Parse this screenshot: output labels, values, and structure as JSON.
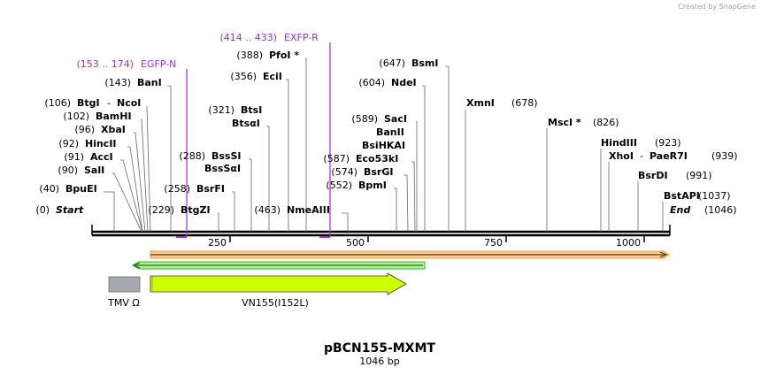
{
  "watermark": "Created by SnapGene",
  "plasmid": {
    "name": "pBCN155-MXMT",
    "length": "1046 bp"
  },
  "axis": {
    "start": 0,
    "end": 1046,
    "ticks": [
      250,
      500,
      750,
      1000
    ]
  },
  "primers": [
    {
      "range": "(153 .. 174)",
      "name": "EGFP-N",
      "pos": 174
    },
    {
      "range": "(414 .. 433)",
      "name": "EXFP-R",
      "pos": 433
    }
  ],
  "sites": [
    {
      "pos": 0,
      "pos_label": "(0)",
      "name": "Start",
      "italic": true
    },
    {
      "pos": 40,
      "pos_label": "(40)",
      "name": "BpuEI"
    },
    {
      "pos": 90,
      "pos_label": "(90)",
      "name": "SalI"
    },
    {
      "pos": 91,
      "pos_label": "(91)",
      "name": "AccI"
    },
    {
      "pos": 92,
      "pos_label": "(92)",
      "name": "HincII"
    },
    {
      "pos": 96,
      "pos_label": "(96)",
      "name": "XbaI"
    },
    {
      "pos": 102,
      "pos_label": "(102)",
      "name": "BamHI"
    },
    {
      "pos": 106,
      "pos_label": "(106)",
      "name": "BtgI",
      "name2": "NcoI"
    },
    {
      "pos": 143,
      "pos_label": "(143)",
      "name": "BanI"
    },
    {
      "pos": 229,
      "pos_label": "(229)",
      "name": "BtgZI"
    },
    {
      "pos": 258,
      "pos_label": "(258)",
      "name": "BsrFI"
    },
    {
      "pos": 288,
      "pos_label": "(288)",
      "name": "BssSI",
      "name2": "BssSαI"
    },
    {
      "pos": 321,
      "pos_label": "(321)",
      "name": "BtsI",
      "name2": "BtsαI"
    },
    {
      "pos": 356,
      "pos_label": "(356)",
      "name": "EciI"
    },
    {
      "pos": 388,
      "pos_label": "(388)",
      "name": "PfoI *"
    },
    {
      "pos": 463,
      "pos_label": "(463)",
      "name": "NmeAIII"
    },
    {
      "pos": 552,
      "pos_label": "(552)",
      "name": "BpmI"
    },
    {
      "pos": 574,
      "pos_label": "(574)",
      "name": "BsrGI"
    },
    {
      "pos": 587,
      "pos_label": "(587)",
      "name": "Eco53kI",
      "name2": "BsiHKAI",
      "name3": "BanII"
    },
    {
      "pos": 589,
      "pos_label": "(589)",
      "name": "SacI"
    },
    {
      "pos": 604,
      "pos_label": "(604)",
      "name": "NdeI"
    },
    {
      "pos": 647,
      "pos_label": "(647)",
      "name": "BsmI"
    },
    {
      "pos": 678,
      "pos_label": "(678)",
      "name": "XmnI"
    },
    {
      "pos": 826,
      "pos_label": "(826)",
      "name": "MscI *"
    },
    {
      "pos": 923,
      "pos_label": "(923)",
      "name": "HindIII"
    },
    {
      "pos": 939,
      "pos_label": "(939)",
      "name": "XhoI",
      "name2": "PaeR7I"
    },
    {
      "pos": 991,
      "pos_label": "(991)",
      "name": "BsrDI"
    },
    {
      "pos": 1037,
      "pos_label": "(1037)",
      "name": "BstAPI"
    },
    {
      "pos": 1046,
      "pos_label": "(1046)",
      "name": "End",
      "italic": true
    }
  ],
  "features": [
    {
      "name": "TMV Ω",
      "start": 30,
      "end": 88,
      "color": "#a6aab0"
    },
    {
      "name": "VN155(I152L)",
      "start": 108,
      "end": 570,
      "color": "#ccff00"
    }
  ],
  "arrows": [
    {
      "start": 108,
      "end": 605,
      "color": "#32b432"
    },
    {
      "start": 108,
      "end": 1046,
      "color": "#f5a623"
    }
  ]
}
